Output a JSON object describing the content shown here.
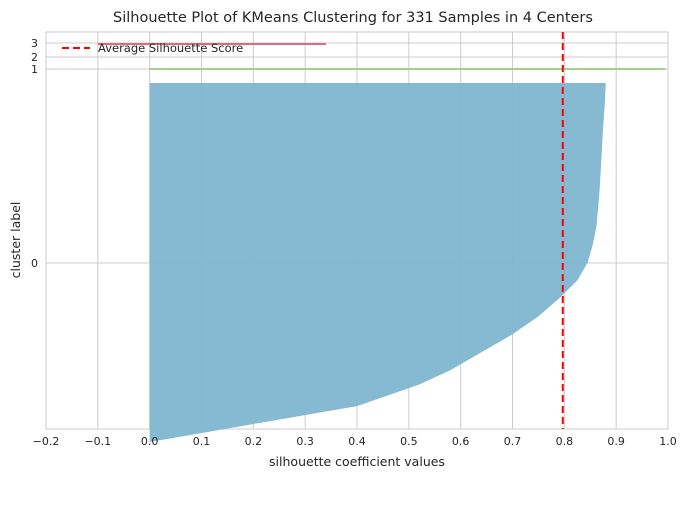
{
  "chart_data": {
    "type": "area",
    "title": "Silhouette Plot of KMeans Clustering for 331 Samples in 4 Centers",
    "xlabel": "silhouette coefficient values",
    "ylabel": "cluster label",
    "xlim": [
      -0.2,
      1.0
    ],
    "xticks": [
      -0.2,
      -0.1,
      0.0,
      0.1,
      0.2,
      0.3,
      0.4,
      0.5,
      0.6,
      0.7,
      0.8,
      0.9,
      1.0
    ],
    "xtick_labels": [
      "−0.2",
      "−0.1",
      "0.0",
      "0.1",
      "0.2",
      "0.3",
      "0.4",
      "0.5",
      "0.6",
      "0.7",
      "0.8",
      "0.9",
      "1.0"
    ],
    "samples": 331,
    "centers": 4,
    "grid": true,
    "legend": {
      "position": "top-left",
      "entries": [
        "Average Silhouette Score"
      ]
    },
    "average_silhouette_score": 0.797,
    "clusters": [
      {
        "label": "0",
        "size": 325,
        "color": "#7fb6d0",
        "profile": [
          [
            0.0,
            0.88
          ],
          [
            0.06,
            0.878
          ],
          [
            0.12,
            0.875
          ],
          [
            0.2,
            0.872
          ],
          [
            0.3,
            0.868
          ],
          [
            0.4,
            0.862
          ],
          [
            0.45,
            0.855
          ],
          [
            0.5,
            0.845
          ],
          [
            0.55,
            0.825
          ],
          [
            0.6,
            0.79
          ],
          [
            0.65,
            0.75
          ],
          [
            0.7,
            0.7
          ],
          [
            0.75,
            0.64
          ],
          [
            0.8,
            0.58
          ],
          [
            0.84,
            0.52
          ],
          [
            0.87,
            0.46
          ],
          [
            0.9,
            0.4
          ],
          [
            0.92,
            0.32
          ],
          [
            0.94,
            0.24
          ],
          [
            0.96,
            0.16
          ],
          [
            0.98,
            0.08
          ],
          [
            1.0,
            0.0
          ]
        ]
      },
      {
        "label": "1",
        "size": 2,
        "color": "#a6cf8f",
        "max_value": 0.995
      },
      {
        "label": "2",
        "size": 2,
        "color": "#e0a7b8",
        "max_value": 0.0
      },
      {
        "label": "3",
        "size": 2,
        "color": "#d96b86",
        "max_value": 0.34,
        "min_value": -0.1
      }
    ],
    "cluster_ticks": [
      "0",
      "1",
      "2",
      "3"
    ]
  },
  "colors": {
    "grid": "#cccccc",
    "avg_line": "#ff0000",
    "cluster0": "#7fb6d0",
    "cluster1": "#a6cf8f",
    "cluster2": "#e0a7b8",
    "cluster3": "#d96b86"
  }
}
